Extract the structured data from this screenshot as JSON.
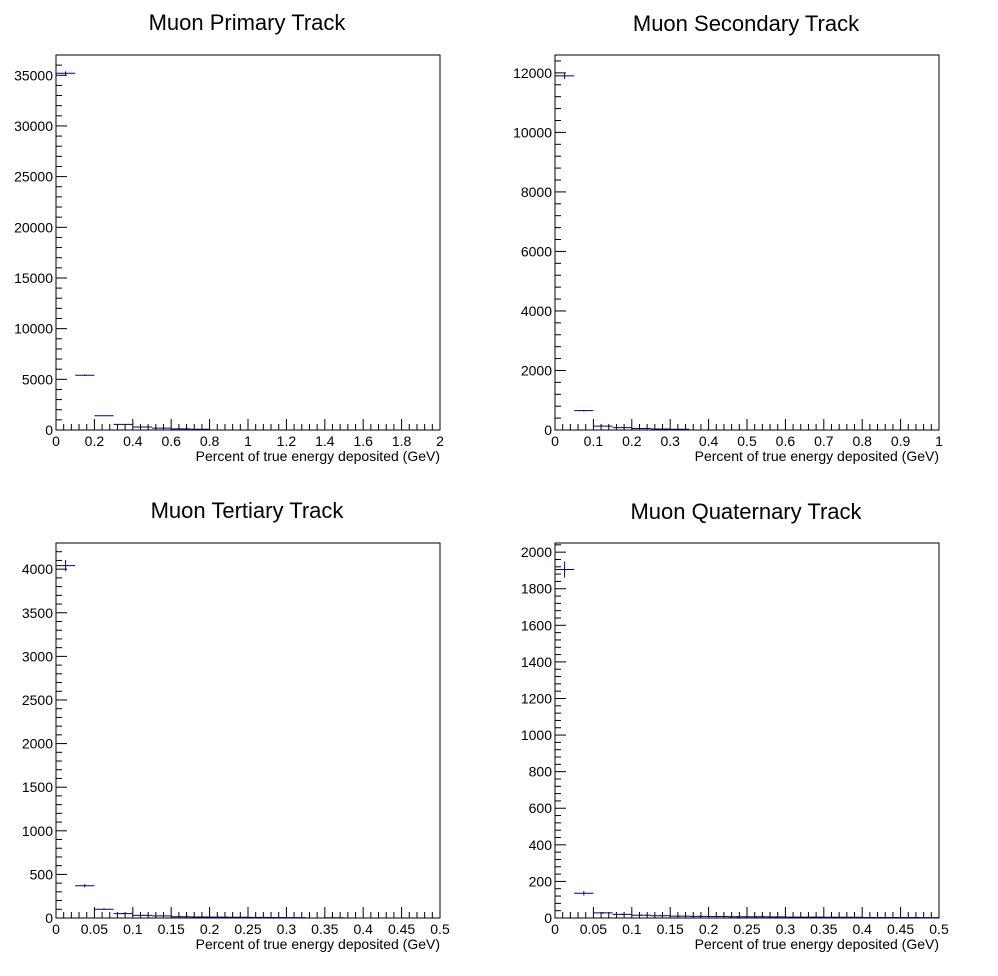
{
  "chart_data": [
    {
      "type": "histogram",
      "title": "Muon Primary Track",
      "xlabel": "Percent of true energy deposited (GeV)",
      "ylabel": "",
      "xlim": [
        0,
        2
      ],
      "ylim": [
        0,
        37000
      ],
      "x_ticks": [
        0,
        0.2,
        0.4,
        0.6,
        0.8,
        1,
        1.2,
        1.4,
        1.6,
        1.8,
        2
      ],
      "x_tick_labels": [
        "0",
        "0.2",
        "0.4",
        "0.6",
        "0.8",
        "1",
        "1.2",
        "1.4",
        "1.6",
        "1.8",
        "2"
      ],
      "y_ticks": [
        0,
        5000,
        10000,
        15000,
        20000,
        25000,
        30000,
        35000
      ],
      "y_tick_labels": [
        "0",
        "5000",
        "10000",
        "15000",
        "20000",
        "25000",
        "30000",
        "35000"
      ],
      "marker_color": "#00007f",
      "bins": [
        {
          "lo": 0.0,
          "hi": 0.1,
          "y": 35200,
          "err": 190
        },
        {
          "lo": 0.1,
          "hi": 0.2,
          "y": 5400,
          "err": 75
        },
        {
          "lo": 0.2,
          "hi": 0.3,
          "y": 1400,
          "err": 40
        },
        {
          "lo": 0.3,
          "hi": 0.4,
          "y": 550,
          "err": 25
        },
        {
          "lo": 0.4,
          "hi": 0.5,
          "y": 300,
          "err": 18
        },
        {
          "lo": 0.5,
          "hi": 0.6,
          "y": 180,
          "err": 14
        },
        {
          "lo": 0.6,
          "hi": 0.7,
          "y": 110,
          "err": 11
        },
        {
          "lo": 0.7,
          "hi": 0.8,
          "y": 70,
          "err": 9
        }
      ]
    },
    {
      "type": "histogram",
      "title": "Muon Secondary Track",
      "xlabel": "Percent of true energy deposited (GeV)",
      "ylabel": "",
      "xlim": [
        0,
        1
      ],
      "ylim": [
        0,
        12600
      ],
      "x_ticks": [
        0,
        0.1,
        0.2,
        0.3,
        0.4,
        0.5,
        0.6,
        0.7,
        0.8,
        0.9,
        1
      ],
      "x_tick_labels": [
        "0",
        "0.1",
        "0.2",
        "0.3",
        "0.4",
        "0.5",
        "0.6",
        "0.7",
        "0.8",
        "0.9",
        "1"
      ],
      "y_ticks": [
        0,
        2000,
        4000,
        6000,
        8000,
        10000,
        12000
      ],
      "y_tick_labels": [
        "0",
        "2000",
        "4000",
        "6000",
        "8000",
        "10000",
        "12000"
      ],
      "marker_color": "#00007f",
      "bins": [
        {
          "lo": 0.0,
          "hi": 0.05,
          "y": 11900,
          "err": 110
        },
        {
          "lo": 0.05,
          "hi": 0.1,
          "y": 650,
          "err": 25
        },
        {
          "lo": 0.1,
          "hi": 0.15,
          "y": 130,
          "err": 12
        },
        {
          "lo": 0.15,
          "hi": 0.2,
          "y": 80,
          "err": 9
        },
        {
          "lo": 0.2,
          "hi": 0.25,
          "y": 50,
          "err": 7
        },
        {
          "lo": 0.25,
          "hi": 0.3,
          "y": 35,
          "err": 6
        },
        {
          "lo": 0.3,
          "hi": 0.35,
          "y": 25,
          "err": 5
        }
      ]
    },
    {
      "type": "histogram",
      "title": "Muon Tertiary Track",
      "xlabel": "Percent of true energy deposited (GeV)",
      "ylabel": "",
      "xlim": [
        0,
        0.5
      ],
      "ylim": [
        0,
        4300
      ],
      "x_ticks": [
        0,
        0.05,
        0.1,
        0.15,
        0.2,
        0.25,
        0.3,
        0.35,
        0.4,
        0.45,
        0.5
      ],
      "x_tick_labels": [
        "0",
        "0.05",
        "0.1",
        "0.15",
        "0.2",
        "0.25",
        "0.3",
        "0.35",
        "0.4",
        "0.45",
        "0.5"
      ],
      "y_ticks": [
        0,
        500,
        1000,
        1500,
        2000,
        2500,
        3000,
        3500,
        4000
      ],
      "y_tick_labels": [
        "0",
        "500",
        "1000",
        "1500",
        "2000",
        "2500",
        "3000",
        "3500",
        "4000"
      ],
      "marker_color": "#00007f",
      "bins": [
        {
          "lo": 0.0,
          "hi": 0.025,
          "y": 4040,
          "err": 64
        },
        {
          "lo": 0.025,
          "hi": 0.05,
          "y": 370,
          "err": 19
        },
        {
          "lo": 0.05,
          "hi": 0.075,
          "y": 100,
          "err": 10
        },
        {
          "lo": 0.075,
          "hi": 0.1,
          "y": 50,
          "err": 7
        },
        {
          "lo": 0.1,
          "hi": 0.125,
          "y": 30,
          "err": 5
        },
        {
          "lo": 0.125,
          "hi": 0.15,
          "y": 25,
          "err": 5
        },
        {
          "lo": 0.15,
          "hi": 0.175,
          "y": 15,
          "err": 4
        },
        {
          "lo": 0.175,
          "hi": 0.2,
          "y": 12,
          "err": 3
        },
        {
          "lo": 0.2,
          "hi": 0.225,
          "y": 10,
          "err": 3
        },
        {
          "lo": 0.225,
          "hi": 0.25,
          "y": 8,
          "err": 3
        },
        {
          "lo": 0.25,
          "hi": 0.275,
          "y": 7,
          "err": 3
        },
        {
          "lo": 0.275,
          "hi": 0.3,
          "y": 6,
          "err": 2
        },
        {
          "lo": 0.3,
          "hi": 0.325,
          "y": 5,
          "err": 2
        },
        {
          "lo": 0.35,
          "hi": 0.375,
          "y": 3,
          "err": 2
        }
      ]
    },
    {
      "type": "histogram",
      "title": "Muon Quaternary Track",
      "xlabel": "Percent of true energy deposited (GeV)",
      "ylabel": "",
      "xlim": [
        0,
        0.5
      ],
      "ylim": [
        0,
        2050
      ],
      "x_ticks": [
        0,
        0.05,
        0.1,
        0.15,
        0.2,
        0.25,
        0.3,
        0.35,
        0.4,
        0.45,
        0.5
      ],
      "x_tick_labels": [
        "0",
        "0.05",
        "0.1",
        "0.15",
        "0.2",
        "0.25",
        "0.3",
        "0.35",
        "0.4",
        "0.45",
        "0.5"
      ],
      "y_ticks": [
        0,
        200,
        400,
        600,
        800,
        1000,
        1200,
        1400,
        1600,
        1800,
        2000
      ],
      "y_tick_labels": [
        "0",
        "200",
        "400",
        "600",
        "800",
        "1000",
        "1200",
        "1400",
        "1600",
        "1800",
        "2000"
      ],
      "marker_color": "#00007f",
      "bins": [
        {
          "lo": 0.0,
          "hi": 0.025,
          "y": 1905,
          "err": 44
        },
        {
          "lo": 0.025,
          "hi": 0.05,
          "y": 135,
          "err": 12
        },
        {
          "lo": 0.05,
          "hi": 0.075,
          "y": 28,
          "err": 5
        },
        {
          "lo": 0.075,
          "hi": 0.1,
          "y": 20,
          "err": 4
        },
        {
          "lo": 0.1,
          "hi": 0.125,
          "y": 15,
          "err": 4
        },
        {
          "lo": 0.125,
          "hi": 0.15,
          "y": 12,
          "err": 3
        },
        {
          "lo": 0.15,
          "hi": 0.175,
          "y": 10,
          "err": 3
        },
        {
          "lo": 0.175,
          "hi": 0.2,
          "y": 9,
          "err": 3
        },
        {
          "lo": 0.2,
          "hi": 0.225,
          "y": 8,
          "err": 3
        },
        {
          "lo": 0.225,
          "hi": 0.25,
          "y": 7,
          "err": 3
        },
        {
          "lo": 0.25,
          "hi": 0.275,
          "y": 7,
          "err": 3
        },
        {
          "lo": 0.275,
          "hi": 0.3,
          "y": 6,
          "err": 2
        },
        {
          "lo": 0.3,
          "hi": 0.325,
          "y": 5,
          "err": 2
        },
        {
          "lo": 0.325,
          "hi": 0.35,
          "y": 5,
          "err": 2
        },
        {
          "lo": 0.35,
          "hi": 0.375,
          "y": 4,
          "err": 2
        },
        {
          "lo": 0.375,
          "hi": 0.4,
          "y": 4,
          "err": 2
        },
        {
          "lo": 0.4,
          "hi": 0.425,
          "y": 3,
          "err": 2
        },
        {
          "lo": 0.425,
          "hi": 0.45,
          "y": 3,
          "err": 2
        },
        {
          "lo": 0.45,
          "hi": 0.475,
          "y": 3,
          "err": 2
        },
        {
          "lo": 0.475,
          "hi": 0.5,
          "y": 2,
          "err": 1
        }
      ]
    }
  ]
}
